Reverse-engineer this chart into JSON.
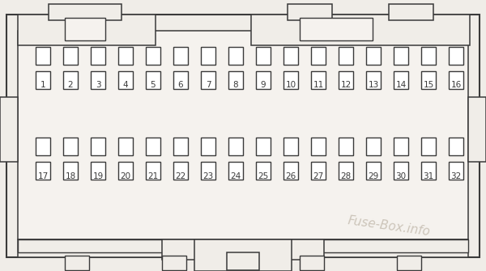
{
  "bg_color": "#f0ede8",
  "inner_bg": "#f5f2ee",
  "line_color": "#3a3a3a",
  "watermark_text": "Fuse-Box.info",
  "watermark_color": "#c8c0b4",
  "row1_fuses": [
    1,
    2,
    3,
    4,
    5,
    6,
    7,
    8,
    9,
    10,
    11,
    12,
    13,
    14,
    15,
    16
  ],
  "row2_fuses": [
    17,
    18,
    19,
    20,
    21,
    22,
    23,
    24,
    25,
    26,
    27,
    28,
    29,
    30,
    31,
    32
  ],
  "fig_w": 6.0,
  "fig_h": 3.35,
  "dpi": 100
}
